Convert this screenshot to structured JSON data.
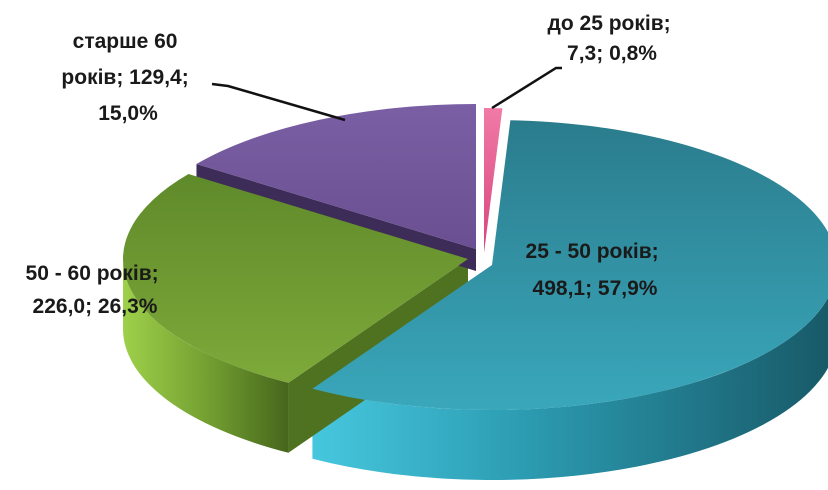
{
  "chart_data": {
    "type": "pie",
    "title": "",
    "legend": "none",
    "slices": [
      {
        "name": "до 25 років",
        "value": 7.3,
        "percent": 0.8,
        "color": "#e8558f",
        "label_lines": [
          "до 25 років;",
          "7,3; 0,8%"
        ]
      },
      {
        "name": "25 - 50 років",
        "value": 498.1,
        "percent": 57.9,
        "color": "#2e8e9e",
        "label_lines": [
          "25 - 50 років;",
          "498,1; 57,9%"
        ]
      },
      {
        "name": "50 - 60 років",
        "value": 226.0,
        "percent": 26.3,
        "color": "#6e9a2e",
        "label_lines": [
          "50 - 60 років;",
          "226,0; 26,3%"
        ]
      },
      {
        "name": "старше 60 років",
        "value": 129.4,
        "percent": 15.0,
        "color": "#7a5a9e",
        "label_lines": [
          "старше 60",
          "років; 129,4;",
          "15,0%"
        ]
      }
    ]
  }
}
